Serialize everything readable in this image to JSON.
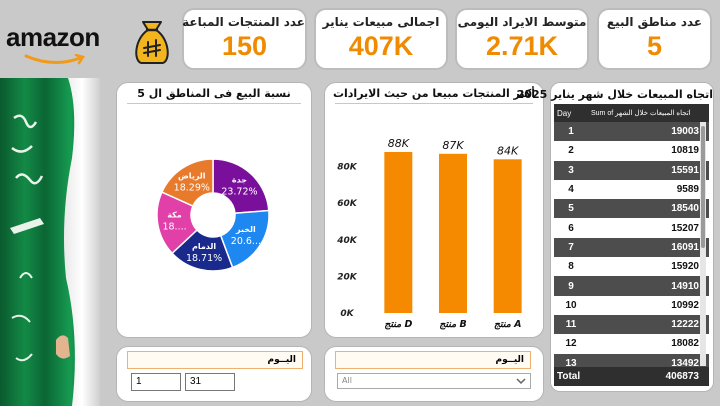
{
  "brand": {
    "name": "amazon",
    "bag_icon": "money-bag-icon"
  },
  "kpis": [
    {
      "label": "عدد المنتجات المباعة",
      "value": "150"
    },
    {
      "label": "اجمالى مبيعات يناير",
      "value": "407K"
    },
    {
      "label": "متوسط الايراد اليومى",
      "value": "2.71K"
    },
    {
      "label": "عدد مناطق البيع",
      "value": "5"
    }
  ],
  "pie_panel": {
    "title": "نسبة البيع فى المناطق ال 5",
    "chart_data": {
      "type": "pie",
      "slices": [
        {
          "label": "جدة",
          "value_label": "23.72%",
          "value": 23.72,
          "color": "#7a0f9c"
        },
        {
          "label": "الخبر",
          "value_label": "20.6...",
          "value": 20.6,
          "color": "#1e88f0"
        },
        {
          "label": "الدمام",
          "value_label": "18.71%",
          "value": 18.71,
          "color": "#1a2a8c"
        },
        {
          "label": "مكة",
          "value_label": "18....",
          "value": 18.68,
          "color": "#e040a8"
        },
        {
          "label": "الرياض",
          "value_label": "18.29%",
          "value": 18.29,
          "color": "#e87a2c"
        }
      ]
    }
  },
  "bar_panel": {
    "title": "أكثر المنتجات مبيعا من حيث الايرادات",
    "chart_data": {
      "type": "bar",
      "categories": [
        "منتج D",
        "منتج B",
        "منتج A"
      ],
      "values": [
        88,
        87,
        84
      ],
      "value_labels": [
        "88K",
        "87K",
        "84K"
      ],
      "ytick_labels": [
        "0K",
        "20K",
        "40K",
        "60K",
        "80K"
      ],
      "yticks": [
        0,
        20,
        40,
        60,
        80
      ],
      "ylim": [
        0,
        94
      ],
      "bar_color": "#f58a00"
    }
  },
  "table_panel": {
    "title": "اتجاه المبيعات خلال شهر يناير 2025",
    "col_day": "Day",
    "col_sum": "Sum of اتجاه المبيعات خلال الشهر",
    "rows": [
      {
        "day": "1",
        "sum": "19003"
      },
      {
        "day": "2",
        "sum": "10819"
      },
      {
        "day": "3",
        "sum": "15591"
      },
      {
        "day": "4",
        "sum": "9589"
      },
      {
        "day": "5",
        "sum": "18540"
      },
      {
        "day": "6",
        "sum": "15207"
      },
      {
        "day": "7",
        "sum": "16091"
      },
      {
        "day": "8",
        "sum": "15920"
      },
      {
        "day": "9",
        "sum": "14910"
      },
      {
        "day": "10",
        "sum": "10992"
      },
      {
        "day": "11",
        "sum": "12222"
      },
      {
        "day": "12",
        "sum": "18082"
      },
      {
        "day": "13",
        "sum": "13492"
      }
    ],
    "total_label": "Total",
    "total_value": "406873"
  },
  "slicer_range": {
    "title": "اليــوم",
    "from": "1",
    "to": "31"
  },
  "slicer_dropdown": {
    "title": "اليــوم",
    "value": "All"
  }
}
